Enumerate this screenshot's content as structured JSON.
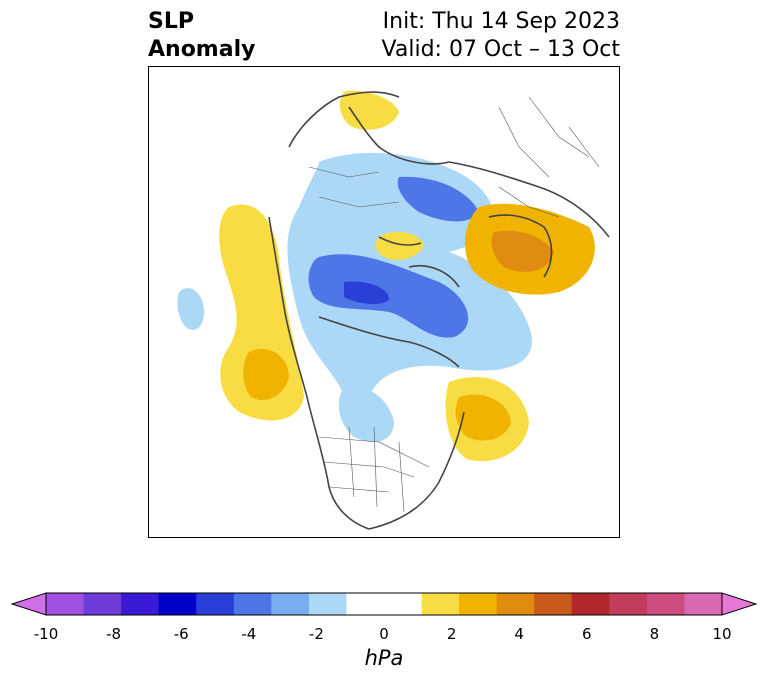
{
  "header": {
    "title_line1": "SLP",
    "title_line2": "Anomaly",
    "init_text": "Init: Thu 14 Sep 2023",
    "valid_text": "Valid: 07 Oct – 13 Oct"
  },
  "colorbar": {
    "units": "hPa",
    "ticks": [
      "-10",
      "-8",
      "-6",
      "-4",
      "-2",
      "0",
      "2",
      "4",
      "6",
      "8",
      "10"
    ],
    "colors": [
      "#d070e6",
      "#a050e0",
      "#6e3cd8",
      "#3a1ad4",
      "#0000cc",
      "#2a3ed8",
      "#4e76e6",
      "#78aef0",
      "#acd8f8",
      "#ffffff",
      "#ffffff",
      "#f8dc44",
      "#f0b400",
      "#e08c10",
      "#c85a1c",
      "#b0282a",
      "#c23c5c",
      "#cc4c80",
      "#d868b0",
      "#e878d8"
    ]
  }
}
